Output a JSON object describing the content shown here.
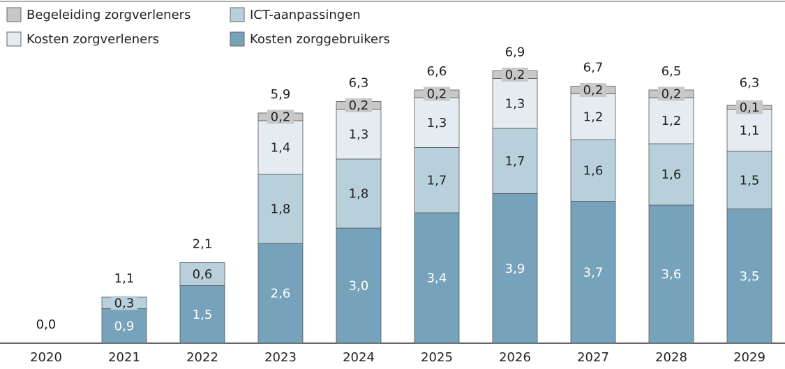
{
  "chart_data": {
    "type": "stacked_bar",
    "categories": [
      "2020",
      "2021",
      "2022",
      "2023",
      "2024",
      "2025",
      "2026",
      "2027",
      "2028",
      "2029"
    ],
    "series": [
      {
        "name": "Kosten zorggebruikers",
        "color": "#76a3bb",
        "values": [
          0,
          0.9,
          1.5,
          2.6,
          3.0,
          3.4,
          3.9,
          3.7,
          3.6,
          3.5
        ],
        "value_labels": [
          null,
          "0,9",
          "1,5",
          "2,6",
          "3,0",
          "3,4",
          "3,9",
          "3,7",
          "3,6",
          "3,5"
        ]
      },
      {
        "name": "ICT-aanpassingen",
        "color": "#b8d0dc",
        "values": [
          0,
          0.3,
          0.6,
          1.8,
          1.8,
          1.7,
          1.7,
          1.6,
          1.6,
          1.5
        ],
        "value_labels": [
          null,
          "0,3",
          "0,6",
          "1,8",
          "1,8",
          "1,7",
          "1,7",
          "1,6",
          "1,6",
          "1,5"
        ]
      },
      {
        "name": "Kosten zorgverleners",
        "color": "#e4ecf2",
        "values": [
          0,
          0,
          0,
          1.4,
          1.3,
          1.3,
          1.3,
          1.2,
          1.2,
          1.1
        ],
        "value_labels": [
          null,
          null,
          null,
          "1,4",
          "1,3",
          "1,3",
          "1,3",
          "1,2",
          "1,2",
          "1,1"
        ]
      },
      {
        "name": "Begeleiding zorgverleners",
        "color": "#c8c8c8",
        "values": [
          0,
          0,
          0,
          0.2,
          0.2,
          0.2,
          0.2,
          0.2,
          0.2,
          0.1
        ],
        "value_labels": [
          null,
          null,
          null,
          "0,2",
          "0,2",
          "0,2",
          "0,2",
          "0,2",
          "0,2",
          "0,1"
        ]
      }
    ],
    "totals": [
      0.0,
      1.1,
      2.1,
      5.9,
      6.3,
      6.6,
      6.9,
      6.7,
      6.5,
      6.3
    ],
    "total_labels": [
      "0,0",
      "1,1",
      "2,1",
      "5,9",
      "6,3",
      "6,6",
      "6,9",
      "6,7",
      "6,5",
      "6,3"
    ]
  }
}
